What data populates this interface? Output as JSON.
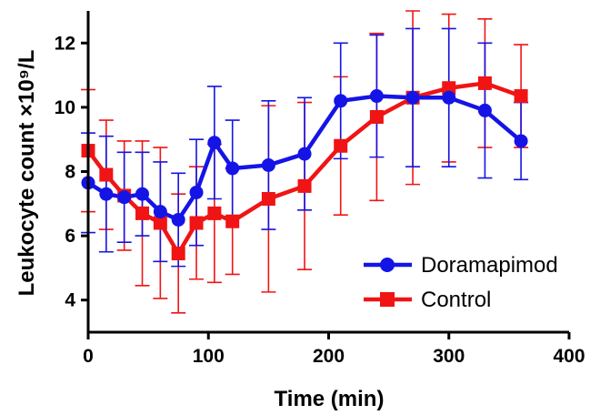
{
  "chart_data": {
    "type": "line",
    "title": "",
    "xlabel": "Time (min)",
    "ylabel": "Leukocyte count ×10⁹/L",
    "xlim": [
      0,
      400
    ],
    "ylim": [
      3,
      13
    ],
    "x_ticks": [
      0,
      100,
      200,
      300,
      400
    ],
    "y_ticks": [
      4,
      6,
      8,
      10,
      12
    ],
    "grid": false,
    "legend_position": "bottom-right",
    "x": [
      0,
      15,
      30,
      45,
      60,
      75,
      90,
      105,
      120,
      150,
      180,
      210,
      240,
      270,
      300,
      330,
      360
    ],
    "series": [
      {
        "name": "Doramapimod",
        "color": "#1414e6",
        "marker": "circle",
        "values": [
          7.65,
          7.3,
          7.2,
          7.3,
          6.75,
          6.5,
          7.35,
          8.9,
          8.1,
          8.2,
          8.55,
          10.2,
          10.35,
          10.3,
          10.3,
          9.9,
          8.95
        ],
        "error": [
          1.55,
          1.8,
          1.4,
          1.3,
          1.55,
          1.45,
          1.65,
          1.75,
          1.5,
          2.0,
          1.75,
          1.8,
          1.9,
          2.15,
          2.15,
          2.1,
          1.2
        ]
      },
      {
        "name": "Control",
        "color": "#f01414",
        "marker": "square",
        "values": [
          8.65,
          7.9,
          7.25,
          6.7,
          6.4,
          5.45,
          6.4,
          6.7,
          6.45,
          7.15,
          7.55,
          8.8,
          9.7,
          10.3,
          10.6,
          10.75,
          10.35
        ],
        "error": [
          1.9,
          1.7,
          1.7,
          2.25,
          2.35,
          1.85,
          1.75,
          2.15,
          1.65,
          2.9,
          2.6,
          2.15,
          2.6,
          2.7,
          2.3,
          2.0,
          1.6
        ]
      }
    ]
  }
}
